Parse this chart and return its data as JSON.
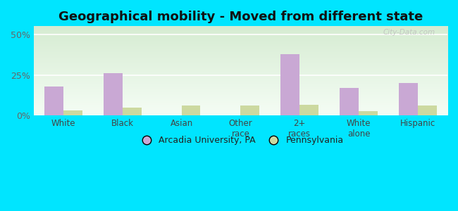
{
  "title": "Geographical mobility - Moved from different state",
  "categories": [
    "White",
    "Black",
    "Asian",
    "Other\nrace",
    "2+\nraces",
    "White\nalone",
    "Hispanic"
  ],
  "arcadia_values": [
    18.0,
    26.0,
    0.0,
    0.0,
    38.0,
    17.0,
    20.0
  ],
  "pa_values": [
    3.0,
    5.0,
    6.0,
    6.0,
    6.5,
    2.5,
    6.0
  ],
  "arcadia_color": "#c9a8d4",
  "pa_color": "#ccd9a0",
  "yticks": [
    0,
    25,
    50
  ],
  "ylim": [
    0,
    55
  ],
  "legend_labels": [
    "Arcadia University, PA",
    "Pennsylvania"
  ],
  "bg_color_top": "#d6ecd2",
  "bg_color_bottom": "#f5fdf5",
  "outer_bg": "#00e5ff",
  "title_fontsize": 13,
  "bar_width": 0.32,
  "watermark": "City-Data.com"
}
